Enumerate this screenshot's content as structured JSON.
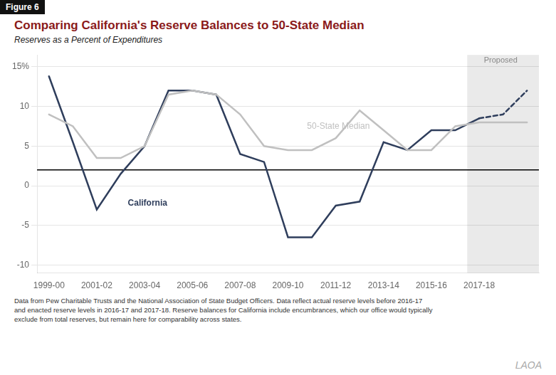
{
  "chart_data": {
    "type": "line",
    "figure_label": "Figure 6",
    "title": "Comparing California's Reserve Balances to 50-State Median",
    "title_color": "#8B1A1A",
    "subtitle": "Reserves as a Percent of Expenditures",
    "series": [
      {
        "name": "50-State Median",
        "color": "#C0C0C0",
        "line_style": "solid",
        "x": [
          0,
          1,
          2,
          3,
          4,
          5,
          6,
          7,
          8,
          9,
          10,
          11,
          12,
          13,
          14,
          15,
          16,
          17,
          18,
          19,
          20
        ],
        "values": [
          9.0,
          7.5,
          3.5,
          3.5,
          5.0,
          11.5,
          12.0,
          11.5,
          9.0,
          5.0,
          4.5,
          4.5,
          6.0,
          9.5,
          7.0,
          4.5,
          4.5,
          7.5,
          8.0,
          8.0,
          8.0
        ]
      },
      {
        "name": "California",
        "color": "#2F3E5C",
        "line_style": "solid",
        "x": [
          0,
          1,
          2,
          3,
          4,
          5,
          6,
          7,
          8,
          9,
          10,
          11,
          12,
          13,
          14,
          15,
          16,
          17,
          18
        ],
        "values": [
          13.8,
          5.5,
          -3.0,
          1.5,
          5.0,
          12.0,
          12.0,
          11.5,
          4.0,
          3.0,
          -6.5,
          -6.5,
          -2.5,
          -2.0,
          5.5,
          4.5,
          7.0,
          7.0,
          8.5
        ]
      },
      {
        "name": "California",
        "color": "#2F3E5C",
        "line_style": "dashed",
        "x": [
          18,
          19,
          20
        ],
        "values": [
          8.5,
          9.0,
          12.0
        ]
      }
    ],
    "xlim": [
      -0.5,
      20.5
    ],
    "xticks": [
      {
        "value": 0,
        "label": "1999-00"
      },
      {
        "value": 2,
        "label": "2001-02"
      },
      {
        "value": 4,
        "label": "2003-04"
      },
      {
        "value": 6,
        "label": "2005-06"
      },
      {
        "value": 8,
        "label": "2007-08"
      },
      {
        "value": 10,
        "label": "2009-10"
      },
      {
        "value": 12,
        "label": "2011-12"
      },
      {
        "value": 14,
        "label": "2013-14"
      },
      {
        "value": 16,
        "label": "2015-16"
      },
      {
        "value": 18,
        "label": "2017-18"
      }
    ],
    "ylim": [
      -11,
      16.5
    ],
    "yticks": [
      -10,
      -5,
      0,
      5,
      10,
      15,
      {
        "value": 15,
        "label": "15%"
      }
    ],
    "grid": "y",
    "legend": false,
    "reference_line": {
      "y": 2.0,
      "color": "#000000"
    },
    "shaded_region": {
      "from": 17.5,
      "to": 20.5,
      "color": "#EAEAEA",
      "label": "Proposed",
      "label_x": 18.9,
      "label_y": 15.3
    },
    "annotations": [
      {
        "text": "California",
        "x": 3.3,
        "y": -2.5,
        "color": "#2F3E5C",
        "bold": true
      },
      {
        "text": "50-State Median",
        "x": 10.8,
        "y": 7.2,
        "color": "#C0C0C0",
        "bold": false
      }
    ],
    "footnote": [
      "Data from Pew Charitable Trusts and the National Association of State Budget Officers. Data reflect actual reserve levels before  2016-17",
      "and enacted reserve levels in 2016-17 and 2017-18. Reserve balances for California include encumbrances, which our office would typically",
      "exclude from total reserves, but remain here for comparability across states."
    ],
    "watermark": "LAOA"
  }
}
